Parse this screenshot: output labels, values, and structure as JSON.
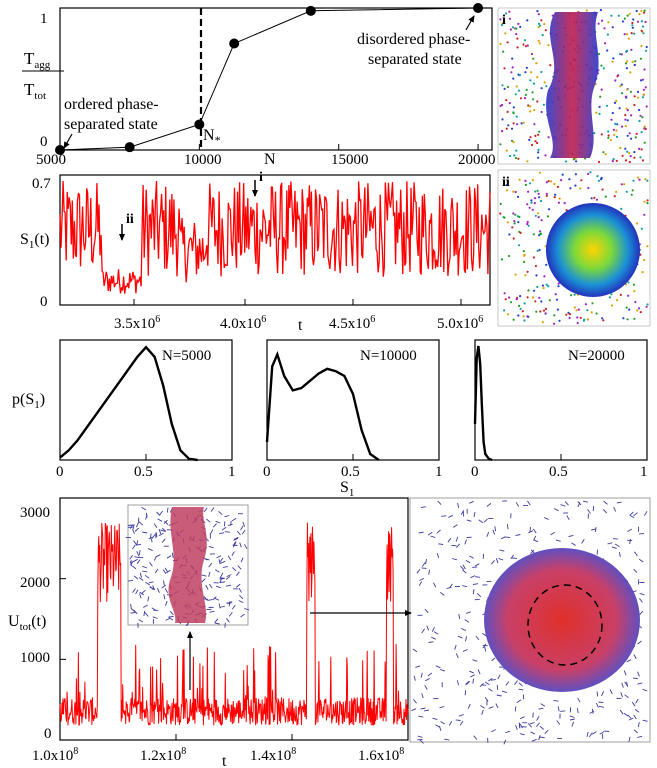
{
  "chart_data": [
    {
      "id": "a",
      "type": "line",
      "x": [
        5000,
        7500,
        10000,
        11250,
        14000,
        20000
      ],
      "y": [
        0,
        0.02,
        0.18,
        0.75,
        0.98,
        1.0
      ],
      "xlim": [
        5000,
        20500
      ],
      "ylim": [
        0,
        1
      ],
      "xticks": [
        "5000",
        "10000",
        "15000",
        "20000"
      ],
      "yticks": [
        "0",
        "1"
      ],
      "xlabel": "N",
      "ylabel_num": "T",
      "ylabel_num_sub": "agg",
      "ylabel_den": "T",
      "ylabel_den_sub": "tot",
      "vline_x": 10000,
      "vline_label": "N",
      "vline_label_sub": "*",
      "annot_ordered": [
        "ordered phase-",
        "separated state"
      ],
      "annot_disordered": [
        "disordered phase-",
        "separated state"
      ]
    },
    {
      "id": "b",
      "type": "line",
      "color": "#ff0000",
      "xlim": [
        3100000,
        5100000
      ],
      "ylim": [
        0,
        0.7
      ],
      "xticks": [
        "3.5x10",
        "4.0x10",
        "4.5x10",
        "5.0x10"
      ],
      "tick_exp": "6",
      "yticks": [
        "0",
        "0.7"
      ],
      "xlabel": "t",
      "ylabel": "S",
      "ylabel_sub": "1",
      "ylabel_tail": "(t)",
      "marker_i": "i",
      "marker_ii": "ii"
    },
    {
      "id": "c",
      "type": "line",
      "series": [
        {
          "name": "N=5000",
          "x": [
            0,
            0.05,
            0.1,
            0.15,
            0.2,
            0.25,
            0.3,
            0.35,
            0.4,
            0.45,
            0.5,
            0.55,
            0.6,
            0.65,
            0.7,
            0.75,
            0.8
          ],
          "y": [
            0.02,
            0.08,
            0.16,
            0.26,
            0.36,
            0.46,
            0.56,
            0.66,
            0.76,
            0.86,
            0.94,
            0.86,
            0.62,
            0.3,
            0.08,
            0.01,
            0
          ]
        },
        {
          "name": "N=10000",
          "x": [
            0,
            0.03,
            0.06,
            0.1,
            0.15,
            0.2,
            0.25,
            0.3,
            0.35,
            0.4,
            0.45,
            0.5,
            0.55,
            0.6,
            0.65
          ],
          "y": [
            0.15,
            0.78,
            0.88,
            0.7,
            0.58,
            0.6,
            0.66,
            0.72,
            0.76,
            0.74,
            0.7,
            0.55,
            0.25,
            0.05,
            0
          ]
        },
        {
          "name": "N=20000",
          "x": [
            0,
            0.01,
            0.02,
            0.03,
            0.04,
            0.05,
            0.06,
            0.08,
            0.1
          ],
          "y": [
            0.3,
            0.85,
            0.95,
            0.8,
            0.45,
            0.15,
            0.05,
            0.01,
            0
          ]
        }
      ],
      "xlim": [
        0,
        1
      ],
      "xticks": [
        "0",
        "0.5",
        "1"
      ],
      "xlabel": "S",
      "xlabel_sub": "1",
      "ylabel": "p(S",
      "ylabel_sub": "1",
      "ylabel_tail": ")"
    },
    {
      "id": "d",
      "type": "line",
      "color": "#ff0000",
      "xlim": [
        100000000,
        160000000
      ],
      "ylim": [
        0,
        3000
      ],
      "xticks": [
        "1.0x10",
        "1.2x10",
        "1.4x10",
        "1.6x10"
      ],
      "tick_exp": "8",
      "yticks": [
        "0",
        "1000",
        "2000",
        "3000"
      ],
      "xlabel": "t",
      "ylabel": "U",
      "ylabel_sub": "tot",
      "ylabel_tail": "(t)"
    }
  ],
  "panel_labels": {
    "i": "i",
    "ii": "ii"
  },
  "colors": {
    "series": "#ff0000",
    "axis": "#000000",
    "particles": "#3a3aa0"
  }
}
